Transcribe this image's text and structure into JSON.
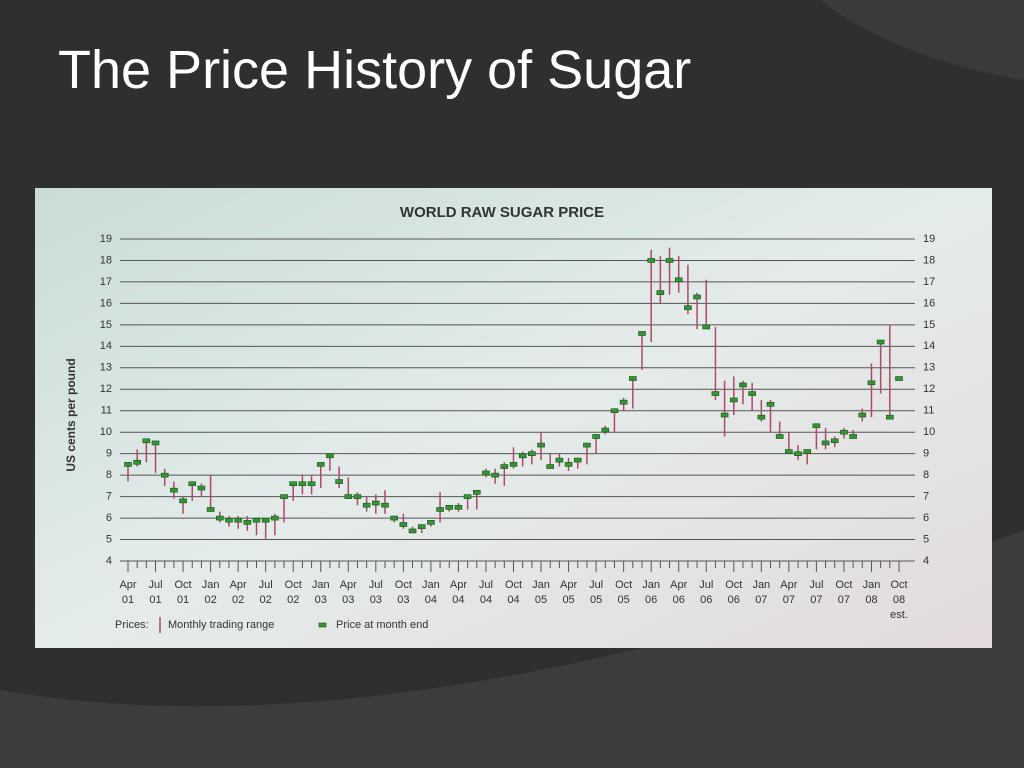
{
  "slide_title": "The Price History of Sugar",
  "chart_data": {
    "type": "range",
    "title": "WORLD RAW SUGAR PRICE",
    "y_label": "US cents per pound",
    "legend_title": "Prices:",
    "ylim": [
      4,
      19
    ],
    "yticks": [
      4,
      5,
      6,
      7,
      8,
      9,
      10,
      11,
      12,
      13,
      14,
      15,
      16,
      17,
      18,
      19
    ],
    "grid": true,
    "categories": [
      "Apr 01",
      null,
      null,
      "Jul 01",
      null,
      null,
      "Oct 01",
      null,
      null,
      "Jan 02",
      null,
      null,
      "Apr 02",
      null,
      null,
      "Jul 02",
      null,
      null,
      "Oct 02",
      null,
      null,
      "Jan 03",
      null,
      null,
      "Apr 03",
      null,
      null,
      "Jul 03",
      null,
      null,
      "Oct 03",
      null,
      null,
      "Jan 04",
      null,
      null,
      "Apr 04",
      null,
      null,
      "Jul 04",
      null,
      null,
      "Oct 04",
      null,
      null,
      "Jan 05",
      null,
      null,
      "Apr 05",
      null,
      null,
      "Jul 05",
      null,
      null,
      "Oct 05",
      null,
      null,
      "Jan 06",
      null,
      null,
      "Apr 06",
      null,
      null,
      "Jul 06",
      null,
      null,
      "Oct 06",
      null,
      null,
      "Jan 07",
      null,
      null,
      "Apr 07",
      null,
      null,
      "Jul 07",
      null,
      null,
      "Oct 07",
      null,
      null,
      "Jan 08",
      null,
      null,
      "Oct 08 est."
    ],
    "series": [
      {
        "name": "Monthly trading range",
        "color": "#b5466a",
        "high": [
          8.6,
          9.2,
          9.7,
          9.6,
          8.3,
          7.7,
          7.0,
          7.7,
          7.6,
          8.0,
          6.3,
          6.1,
          6.1,
          6.1,
          6.0,
          6.0,
          6.2,
          7.1,
          7.7,
          8.0,
          8.0,
          8.6,
          9.0,
          8.4,
          7.9,
          7.2,
          7.0,
          7.1,
          7.3,
          6.1,
          6.2,
          5.6,
          5.7,
          5.9,
          7.2,
          6.6,
          6.7,
          7.1,
          7.3,
          8.3,
          8.3,
          8.6,
          9.3,
          9.1,
          9.2,
          10.0,
          9.0,
          9.0,
          8.8,
          8.8,
          9.5,
          9.9,
          10.3,
          11.1,
          11.6,
          12.6,
          14.7,
          18.5,
          18.2,
          18.6,
          18.2,
          17.8,
          16.5,
          17.1,
          14.9,
          12.4,
          12.6,
          12.4,
          12.3,
          11.5,
          11.5,
          10.5,
          10.0,
          9.4,
          9.2,
          10.4,
          10.2,
          9.8,
          10.2,
          10.1,
          11.1,
          13.2,
          14.3,
          15.0,
          null
        ],
        "low": [
          7.7,
          8.4,
          8.6,
          8.1,
          7.5,
          6.9,
          6.2,
          6.8,
          7.0,
          6.3,
          5.8,
          5.6,
          5.5,
          5.4,
          5.2,
          5.0,
          5.2,
          5.8,
          6.8,
          7.1,
          7.1,
          7.4,
          8.2,
          7.4,
          6.9,
          6.6,
          6.3,
          6.2,
          6.2,
          5.8,
          5.5,
          5.3,
          5.3,
          5.6,
          5.8,
          6.3,
          6.3,
          6.4,
          6.4,
          7.9,
          7.6,
          7.5,
          8.3,
          8.4,
          8.5,
          8.7,
          8.4,
          8.4,
          8.2,
          8.3,
          8.5,
          9.0,
          9.9,
          10.0,
          11.0,
          11.1,
          12.9,
          14.2,
          16.0,
          16.4,
          16.5,
          15.5,
          14.8,
          14.8,
          11.5,
          9.8,
          10.8,
          11.3,
          11.0,
          10.5,
          10.0,
          9.7,
          9.0,
          8.7,
          8.5,
          9.2,
          9.2,
          9.3,
          9.7,
          9.7,
          10.5,
          10.7,
          11.8,
          10.7,
          null
        ]
      },
      {
        "name": "Price at month end",
        "color": "#2e9a2e",
        "values": [
          8.5,
          8.6,
          9.6,
          9.5,
          8.0,
          7.3,
          6.8,
          7.6,
          7.4,
          6.4,
          6.0,
          5.9,
          5.9,
          5.8,
          5.9,
          5.9,
          6.0,
          7.0,
          7.6,
          7.6,
          7.6,
          8.5,
          8.9,
          7.7,
          7.0,
          7.0,
          6.6,
          6.7,
          6.6,
          6.0,
          5.7,
          5.4,
          5.6,
          5.8,
          6.4,
          6.5,
          6.5,
          7.0,
          7.2,
          8.1,
          8.0,
          8.4,
          8.5,
          8.9,
          9.0,
          9.4,
          8.4,
          8.7,
          8.5,
          8.7,
          9.4,
          9.8,
          10.1,
          11.0,
          11.4,
          12.5,
          14.6,
          18.0,
          16.5,
          18.0,
          17.1,
          15.8,
          16.3,
          14.9,
          11.8,
          10.8,
          11.5,
          12.2,
          11.8,
          10.7,
          11.3,
          9.8,
          9.1,
          9.0,
          9.1,
          10.3,
          9.5,
          9.6,
          10.0,
          9.8,
          10.8,
          12.3,
          14.2,
          10.7,
          12.5
        ]
      }
    ]
  }
}
